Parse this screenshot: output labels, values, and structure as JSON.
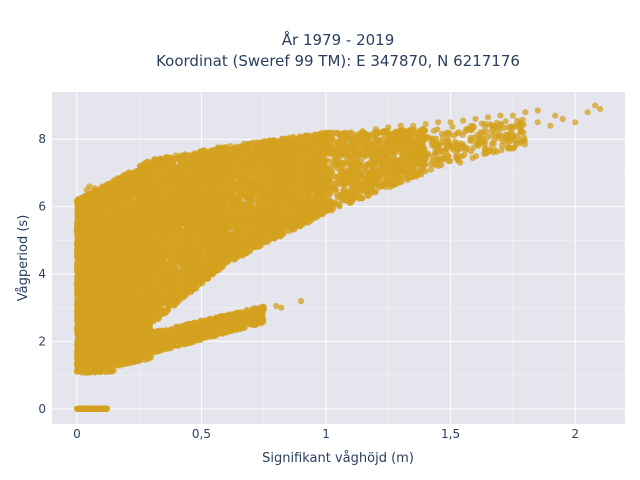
{
  "chart_data": {
    "type": "scatter",
    "title_lines": [
      "År 1979 - 2019",
      "Koordinat (Sweref 99 TM): E 347870, N 6217176"
    ],
    "xlabel": "Signifikant våghöjd (m)",
    "ylabel": "Vågperiod (s)",
    "xlim": [
      -0.1,
      2.2
    ],
    "ylim": [
      -0.45,
      9.4
    ],
    "xticks": [
      0,
      0.5,
      1,
      1.5,
      2
    ],
    "xtick_labels": [
      "0",
      "0,5",
      "1",
      "1,5",
      "2"
    ],
    "yticks": [
      0,
      2,
      4,
      6,
      8
    ],
    "ytick_labels": [
      "0",
      "2",
      "4",
      "6",
      "8"
    ],
    "grid": true,
    "background": "#e5e5ee",
    "marker_color": "#d4a21f",
    "marker_opacity": 0.75,
    "series": [
      {
        "x": [
          0.0,
          0.02,
          0.05,
          0.08,
          0.1,
          0.12,
          0.01,
          0.03,
          0.06,
          0.09,
          0.11,
          0.0,
          0.01,
          0.02,
          0.03,
          0.04,
          0.05,
          0.06,
          0.07,
          0.08,
          0.02,
          0.04,
          0.06,
          0.03,
          0.05,
          0.07,
          0.01,
          0.02,
          0.04,
          0.05,
          0.03,
          0.06,
          0.08,
          0.09,
          0.02,
          0.04,
          0.07,
          0.1,
          0.12,
          0.15,
          0.18,
          0.2,
          0.25,
          0.3,
          0.35,
          0.4,
          0.45,
          0.5,
          0.55,
          0.6,
          0.65,
          0.7,
          0.75,
          0.8,
          0.82,
          0.9,
          0.1,
          0.15,
          0.2,
          0.25,
          0.3,
          0.35,
          0.4,
          0.45,
          0.5,
          0.55,
          0.6,
          0.65,
          0.7,
          0.75,
          0.8,
          0.85,
          0.9,
          0.95,
          1.0,
          1.05,
          1.1,
          1.15,
          1.2,
          1.25,
          1.3,
          1.35,
          1.4,
          1.45,
          1.5,
          1.55,
          1.6,
          1.65,
          1.7,
          1.75,
          1.8,
          1.85,
          0.2,
          0.3,
          0.4,
          0.5,
          0.6,
          0.7,
          0.8,
          0.9,
          1.0,
          1.1,
          1.2,
          1.3,
          1.4,
          0.05,
          0.08,
          0.1,
          0.12,
          0.15,
          0.2,
          0.25,
          0.3,
          0.03,
          0.04,
          0.05,
          0.06,
          0.07,
          1.5,
          1.6,
          1.7,
          1.78,
          1.85,
          1.9,
          1.95,
          2.0,
          2.05,
          2.1,
          2.08,
          1.92,
          1.62,
          1.72,
          1.45
        ],
        "y": [
          0.0,
          0.0,
          0.0,
          0.0,
          0.0,
          0.0,
          0.0,
          0.0,
          0.0,
          0.0,
          0.0,
          1.1,
          1.3,
          1.5,
          1.7,
          1.9,
          2.1,
          2.3,
          2.5,
          2.7,
          3.0,
          3.3,
          3.6,
          4.0,
          4.4,
          4.8,
          5.2,
          5.6,
          5.9,
          6.3,
          2.2,
          1.8,
          2.4,
          1.6,
          3.8,
          5.0,
          4.2,
          2.0,
          1.6,
          1.7,
          1.8,
          1.9,
          2.0,
          2.1,
          2.2,
          2.35,
          2.45,
          2.55,
          2.65,
          2.75,
          2.85,
          2.9,
          2.95,
          3.05,
          3.0,
          3.2,
          5.0,
          5.5,
          6.0,
          6.3,
          6.5,
          6.7,
          6.9,
          7.0,
          7.2,
          7.3,
          7.4,
          7.5,
          7.6,
          7.7,
          7.8,
          7.9,
          8.0,
          8.05,
          8.1,
          8.15,
          8.2,
          8.2,
          8.3,
          8.35,
          8.4,
          8.4,
          8.45,
          8.5,
          8.5,
          8.55,
          8.6,
          8.65,
          8.7,
          8.7,
          8.8,
          8.85,
          2.5,
          3.0,
          3.5,
          4.0,
          4.5,
          5.0,
          5.5,
          6.0,
          6.5,
          6.8,
          7.0,
          7.2,
          7.4,
          1.2,
          1.4,
          1.5,
          1.6,
          1.7,
          1.8,
          2.0,
          2.2,
          6.3,
          6.5,
          6.6,
          6.4,
          6.55,
          7.8,
          7.9,
          8.1,
          8.3,
          8.5,
          8.4,
          8.6,
          8.5,
          8.8,
          8.9,
          9.0,
          8.7,
          8.2,
          8.0,
          7.6
        ]
      }
    ],
    "regions": [
      {
        "xa": 0.0,
        "xb": 0.12,
        "ylo_a": 0.0,
        "yhi_a": 0.0,
        "ylo_b": 0.0,
        "yhi_b": 0.0,
        "n": 200
      },
      {
        "xa": 0.0,
        "xb": 0.08,
        "ylo_a": 1.1,
        "yhi_a": 6.2,
        "ylo_b": 1.1,
        "yhi_b": 6.5,
        "n": 2600
      },
      {
        "xa": 0.08,
        "xb": 0.3,
        "ylo_a": 1.1,
        "yhi_a": 6.5,
        "ylo_b": 1.5,
        "yhi_b": 7.4,
        "n": 3600
      },
      {
        "xa": 0.3,
        "xb": 0.6,
        "ylo_a": 2.5,
        "yhi_a": 7.4,
        "ylo_b": 4.3,
        "yhi_b": 7.8,
        "n": 3000
      },
      {
        "xa": 0.6,
        "xb": 1.0,
        "ylo_a": 4.3,
        "yhi_a": 7.8,
        "ylo_b": 5.8,
        "yhi_b": 8.2,
        "n": 2400
      },
      {
        "xa": 1.0,
        "xb": 1.4,
        "ylo_a": 5.8,
        "yhi_a": 8.2,
        "ylo_b": 7.0,
        "yhi_b": 8.3,
        "n": 1000
      },
      {
        "xa": 1.4,
        "xb": 1.8,
        "ylo_a": 7.0,
        "yhi_a": 8.3,
        "ylo_b": 7.8,
        "yhi_b": 8.6,
        "n": 220
      },
      {
        "xa": 0.08,
        "xb": 0.75,
        "ylo_a": 1.2,
        "yhi_a": 1.9,
        "ylo_b": 2.55,
        "yhi_b": 3.05,
        "n": 1200
      },
      {
        "xa": 0.02,
        "xb": 0.15,
        "ylo_a": 1.05,
        "yhi_a": 3.2,
        "ylo_b": 1.1,
        "yhi_b": 3.4,
        "n": 900
      }
    ]
  }
}
